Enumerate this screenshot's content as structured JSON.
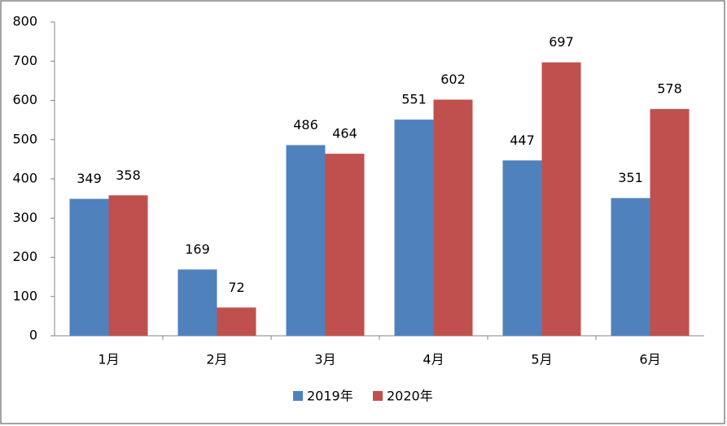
{
  "chart_data": {
    "type": "bar",
    "categories": [
      "1月",
      "2月",
      "3月",
      "4月",
      "5月",
      "6月"
    ],
    "series": [
      {
        "name": "2019年",
        "color": "#4f81bd",
        "values": [
          349,
          169,
          486,
          551,
          447,
          351
        ]
      },
      {
        "name": "2020年",
        "color": "#c0504d",
        "values": [
          358,
          72,
          464,
          602,
          697,
          578
        ]
      }
    ],
    "ylim": [
      0,
      800
    ],
    "yticks": [
      0,
      100,
      200,
      300,
      400,
      500,
      600,
      700,
      800
    ],
    "grid": false,
    "legend": "bottom"
  }
}
